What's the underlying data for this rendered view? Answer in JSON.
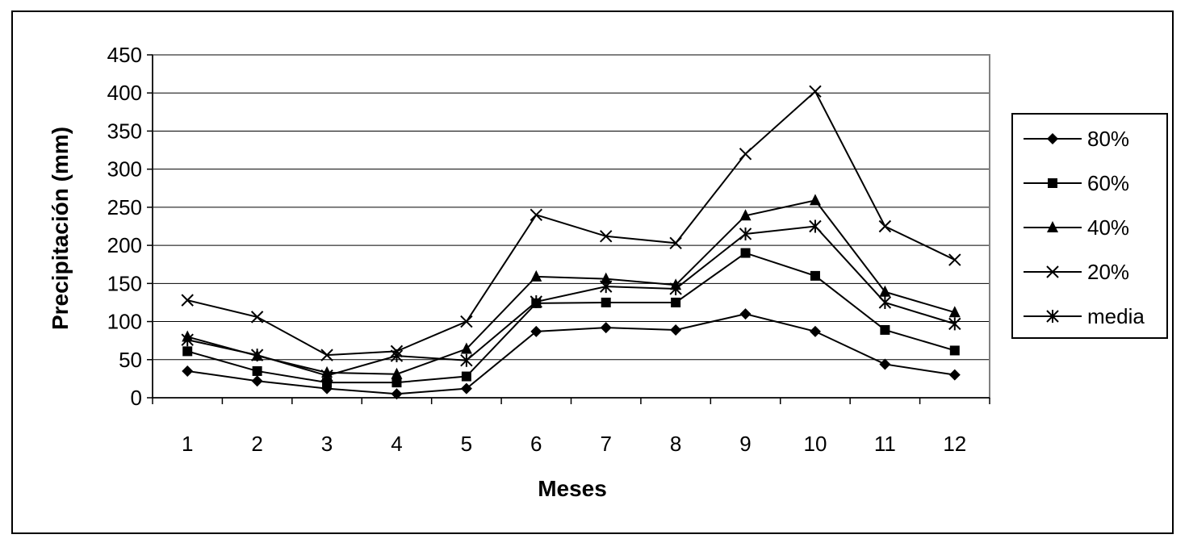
{
  "chart_data": {
    "type": "line",
    "title": "",
    "xlabel": "Meses",
    "ylabel": "Precipitación (mm)",
    "categories": [
      "1",
      "2",
      "3",
      "4",
      "5",
      "6",
      "7",
      "8",
      "9",
      "10",
      "11",
      "12"
    ],
    "ylim": [
      0,
      450
    ],
    "yticks": [
      0,
      50,
      100,
      150,
      200,
      250,
      300,
      350,
      400,
      450
    ],
    "grid": true,
    "legend_position": "right",
    "series": [
      {
        "name": "80%",
        "marker": "diamond",
        "values": [
          35,
          22,
          12,
          5,
          12,
          87,
          92,
          89,
          110,
          87,
          44,
          30
        ]
      },
      {
        "name": "60%",
        "marker": "square",
        "values": [
          61,
          35,
          20,
          20,
          28,
          124,
          125,
          125,
          190,
          160,
          89,
          62
        ]
      },
      {
        "name": "40%",
        "marker": "triangle",
        "values": [
          80,
          55,
          33,
          31,
          64,
          159,
          156,
          148,
          239,
          259,
          139,
          112
        ]
      },
      {
        "name": "20%",
        "marker": "x",
        "values": [
          128,
          106,
          56,
          61,
          100,
          240,
          212,
          203,
          320,
          402,
          225,
          181
        ]
      },
      {
        "name": "media",
        "marker": "star",
        "values": [
          76,
          56,
          29,
          55,
          49,
          126,
          146,
          143,
          215,
          225,
          125,
          97
        ]
      }
    ]
  }
}
